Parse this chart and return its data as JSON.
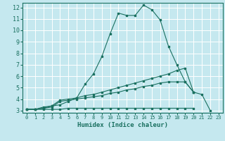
{
  "xlabel": "Humidex (Indice chaleur)",
  "xlim": [
    -0.5,
    23.5
  ],
  "ylim": [
    2.8,
    12.4
  ],
  "yticks": [
    3,
    4,
    5,
    6,
    7,
    8,
    9,
    10,
    11,
    12
  ],
  "xticks": [
    0,
    1,
    2,
    3,
    4,
    5,
    6,
    7,
    8,
    9,
    10,
    11,
    12,
    13,
    14,
    15,
    16,
    17,
    18,
    19,
    20,
    21,
    22,
    23
  ],
  "background_color": "#c5e8ef",
  "grid_color": "#ffffff",
  "line_color": "#1a7060",
  "series": [
    {
      "x": [
        0,
        1,
        2,
        3,
        4,
        5,
        6,
        7,
        8,
        9,
        10,
        11,
        12,
        13,
        14,
        15,
        16,
        17,
        18,
        19,
        20,
        21,
        22,
        23
      ],
      "y": [
        3.1,
        3.1,
        3.3,
        3.4,
        3.5,
        3.8,
        4.1,
        5.3,
        6.2,
        7.7,
        9.7,
        11.5,
        11.3,
        11.3,
        12.2,
        11.8,
        10.9,
        8.6,
        7.0,
        5.5,
        4.6,
        4.4,
        3.0,
        null
      ]
    },
    {
      "x": [
        0,
        1,
        2,
        3,
        4,
        5,
        6,
        7,
        8,
        9,
        10,
        11,
        12,
        13,
        14,
        15,
        16,
        17,
        18,
        19,
        20,
        21,
        22,
        23
      ],
      "y": [
        3.1,
        3.1,
        3.2,
        3.4,
        3.9,
        4.0,
        4.1,
        4.3,
        4.4,
        4.6,
        4.8,
        5.0,
        5.2,
        5.4,
        5.6,
        5.8,
        6.0,
        6.2,
        6.5,
        6.7,
        4.6,
        null,
        null,
        null
      ]
    },
    {
      "x": [
        0,
        1,
        2,
        3,
        4,
        5,
        6,
        7,
        8,
        9,
        10,
        11,
        12,
        13,
        14,
        15,
        16,
        17,
        18,
        19,
        20,
        21,
        22,
        23
      ],
      "y": [
        3.1,
        3.1,
        3.2,
        3.3,
        3.8,
        3.9,
        4.0,
        4.1,
        4.2,
        4.3,
        4.5,
        4.6,
        4.8,
        4.9,
        5.1,
        5.2,
        5.4,
        5.5,
        5.5,
        5.5,
        4.6,
        null,
        null,
        null
      ]
    },
    {
      "x": [
        0,
        1,
        2,
        3,
        4,
        5,
        6,
        7,
        8,
        9,
        10,
        11,
        12,
        13,
        14,
        15,
        16,
        17,
        18,
        19,
        20,
        21,
        22,
        23
      ],
      "y": [
        3.1,
        3.1,
        3.1,
        3.1,
        3.1,
        3.2,
        3.2,
        3.2,
        3.2,
        3.2,
        3.2,
        3.2,
        3.2,
        3.2,
        3.2,
        3.2,
        3.2,
        3.2,
        3.2,
        3.2,
        3.2,
        null,
        null,
        null
      ]
    }
  ]
}
